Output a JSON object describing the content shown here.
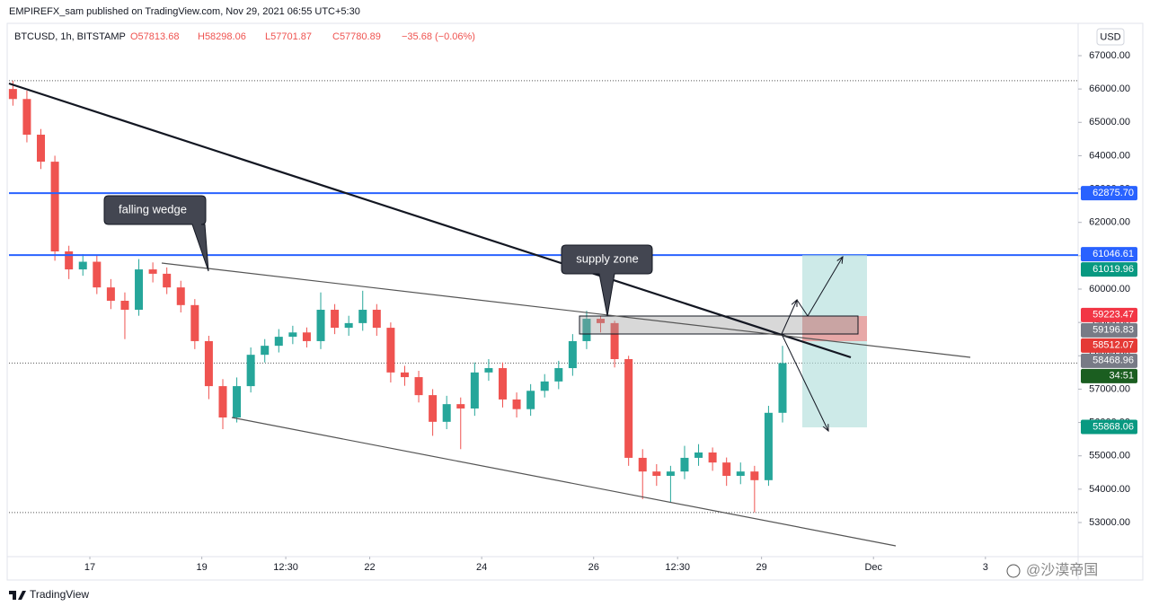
{
  "header": {
    "text": "EMPIREFX_sam published on TradingView.com, Nov 29, 2021 06:55 UTC+5:30"
  },
  "legend": {
    "symbol": "BTCUSD, 1h, BITSTAMP",
    "open": "O57813.68",
    "high": "H58298.06",
    "low": "L57701.87",
    "close": "C57780.89",
    "change": "−35.68 (−0.06%)"
  },
  "currency_button": "USD",
  "annotations": {
    "falling_wedge": "falling wedge",
    "supply_zone": "supply zone"
  },
  "footer": {
    "brand": "TradingView",
    "watermark": "@沙漠帝国"
  },
  "chart_data": {
    "type": "candlestick",
    "up_color": "#26a69a",
    "down_color": "#ef5350",
    "xlim": [
      15.555,
      34.656
    ],
    "ylim": [
      51977,
      67915
    ],
    "xticks": [
      17,
      19,
      {
        "value": 20.5,
        "label": "12:30"
      },
      22,
      24,
      26,
      {
        "value": 27.5,
        "label": "12:30"
      },
      29,
      {
        "value": 31,
        "label": "Dec"
      },
      {
        "value": 33,
        "label": "3"
      }
    ],
    "yticks": [
      {
        "value": 53000,
        "label": "53000.00"
      },
      {
        "value": 54000,
        "label": "54000.00"
      },
      {
        "value": 55000,
        "label": "55000.00"
      },
      {
        "value": 56000,
        "label": "56000.00"
      },
      {
        "value": 57000,
        "label": "57000.00"
      },
      {
        "value": 58000,
        "label": "58000.00"
      },
      {
        "value": 59000,
        "label": "59000.00"
      },
      {
        "value": 60000,
        "label": "60000.00"
      },
      {
        "value": 61000,
        "label": "61000.00"
      },
      {
        "value": 62000,
        "label": "62000.00"
      },
      {
        "value": 63000,
        "label": "63000.00"
      },
      {
        "value": 64000,
        "label": "64000.00"
      },
      {
        "value": 65000,
        "label": "65000.00"
      },
      {
        "value": 66000,
        "label": "66000.00"
      },
      {
        "value": 67000,
        "label": "67000.00"
      }
    ],
    "x": [
      15.625,
      15.875,
      16.125,
      16.375,
      16.625,
      16.875,
      17.125,
      17.375,
      17.625,
      17.875,
      18.125,
      18.375,
      18.625,
      18.875,
      19.125,
      19.375,
      19.625,
      19.875,
      20.125,
      20.375,
      20.625,
      20.875,
      21.125,
      21.375,
      21.625,
      21.875,
      22.125,
      22.375,
      22.625,
      22.875,
      23.125,
      23.375,
      23.625,
      23.875,
      24.125,
      24.375,
      24.625,
      24.875,
      25.125,
      25.375,
      25.625,
      25.875,
      26.125,
      26.375,
      26.625,
      26.875,
      27.125,
      27.375,
      27.625,
      27.875,
      28.125,
      28.375,
      28.625,
      28.875,
      29.125,
      29.375
    ],
    "open": [
      66000,
      65700,
      64630,
      63820,
      61130,
      60590,
      60820,
      60050,
      59650,
      59380,
      60590,
      60460,
      60050,
      59520,
      58440,
      57090,
      56150,
      57090,
      58030,
      58300,
      58570,
      58700,
      58440,
      59380,
      58840,
      58980,
      59380,
      58840,
      57500,
      57360,
      56820,
      56020,
      56550,
      56420,
      57500,
      57630,
      56690,
      56400,
      56950,
      57230,
      57630,
      58440,
      59110,
      58980,
      57900,
      54940,
      54530,
      54400,
      54530,
      54940,
      55100,
      54800,
      54400,
      54530,
      54270,
      56290
    ],
    "high": [
      66250,
      65950,
      64800,
      64000,
      61300,
      61050,
      61000,
      60300,
      59900,
      60900,
      60800,
      60650,
      60250,
      59700,
      58600,
      57300,
      57350,
      58250,
      58500,
      58800,
      58900,
      58850,
      59900,
      59550,
      59200,
      59950,
      59550,
      59000,
      57700,
      57550,
      57000,
      56800,
      56750,
      57800,
      57900,
      57800,
      56900,
      57150,
      57450,
      57850,
      58650,
      59350,
      59200,
      59050,
      58000,
      55200,
      54750,
      54700,
      55300,
      55350,
      55250,
      54950,
      54800,
      54700,
      56500,
      58298.06
    ],
    "low": [
      65500,
      64400,
      63600,
      60850,
      60300,
      60400,
      59850,
      59400,
      58500,
      59200,
      60200,
      59850,
      59300,
      58200,
      56700,
      55800,
      56000,
      56900,
      57800,
      58100,
      58350,
      58250,
      58200,
      58650,
      58600,
      58750,
      58600,
      57200,
      57100,
      56600,
      55600,
      55800,
      55200,
      56200,
      57250,
      56450,
      56150,
      56200,
      56750,
      57000,
      57400,
      58200,
      58700,
      57650,
      54700,
      53700,
      54100,
      53600,
      54300,
      54700,
      54550,
      54100,
      54150,
      53300,
      54100,
      56000
    ],
    "close": [
      65700,
      64630,
      63820,
      61130,
      60590,
      60820,
      60050,
      59650,
      59380,
      60590,
      60460,
      60050,
      59520,
      58440,
      57090,
      56150,
      57090,
      58030,
      58300,
      58570,
      58700,
      58440,
      59380,
      58840,
      58980,
      59380,
      58840,
      57500,
      57360,
      56820,
      56020,
      56550,
      56420,
      57500,
      57630,
      56690,
      56400,
      56950,
      57230,
      57630,
      58440,
      59110,
      58980,
      57900,
      54940,
      54530,
      54400,
      54530,
      54940,
      55100,
      54800,
      54400,
      54530,
      54270,
      56290,
      57780.89
    ],
    "hlines": [
      {
        "value": 62875.7,
        "color": "#2962ff"
      },
      {
        "value": 61019.96,
        "color": "#2962ff"
      }
    ],
    "price_labels": [
      {
        "value": 62875.7,
        "label": "62875.70",
        "color": "#2962ff"
      },
      {
        "value": 61046.61,
        "label": "61046.61",
        "color": "#2962ff"
      },
      {
        "value": 61019.96,
        "label": "61019.96",
        "color": "#089981"
      },
      {
        "value": 59223.47,
        "label": "59223.47",
        "color": "#f23645"
      },
      {
        "value": 59196.83,
        "label": "59196.83",
        "color": "#787b86"
      },
      {
        "value": 58512.07,
        "label": "58512.07",
        "color": "#e53935"
      },
      {
        "value": 58468.96,
        "label": "58468.96",
        "color": "#787b86"
      },
      {
        "value": 57780.89,
        "label": "34:51",
        "color": "#1b5e20"
      },
      {
        "value": 55868.06,
        "label": "55868.06",
        "color": "#089981"
      }
    ]
  }
}
